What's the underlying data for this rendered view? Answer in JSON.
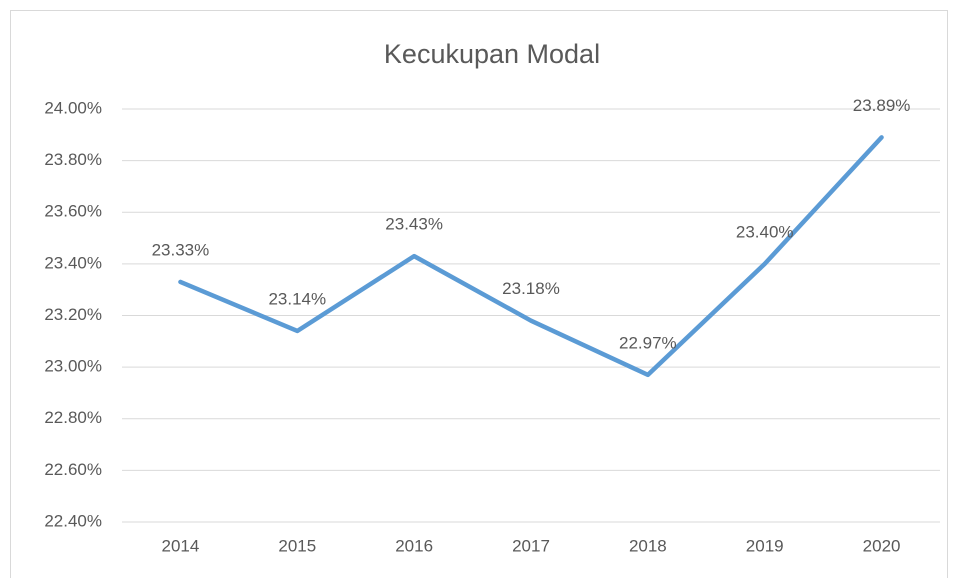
{
  "chart_data": {
    "type": "line",
    "title": "Kecukupan Modal",
    "categories": [
      "2014",
      "2015",
      "2016",
      "2017",
      "2018",
      "2019",
      "2020"
    ],
    "series": [
      {
        "name": "Kecukupan Modal",
        "color": "#5b9bd5",
        "values": [
          23.33,
          23.14,
          23.43,
          23.18,
          22.97,
          23.4,
          23.89
        ],
        "value_labels": [
          "23.33%",
          "23.14%",
          "23.43%",
          "23.18%",
          "22.97%",
          "23.40%",
          "23.89%"
        ]
      }
    ],
    "ylim": [
      22.4,
      24.0
    ],
    "yticks": [
      {
        "value": 22.4,
        "label": "22.40%"
      },
      {
        "value": 22.6,
        "label": "22.60%"
      },
      {
        "value": 22.8,
        "label": "22.80%"
      },
      {
        "value": 23.0,
        "label": "23.00%"
      },
      {
        "value": 23.2,
        "label": "23.20%"
      },
      {
        "value": 23.4,
        "label": "23.40%"
      },
      {
        "value": 23.6,
        "label": "23.60%"
      },
      {
        "value": 23.8,
        "label": "23.80%"
      },
      {
        "value": 24.0,
        "label": "24.00%"
      }
    ],
    "grid": true
  }
}
